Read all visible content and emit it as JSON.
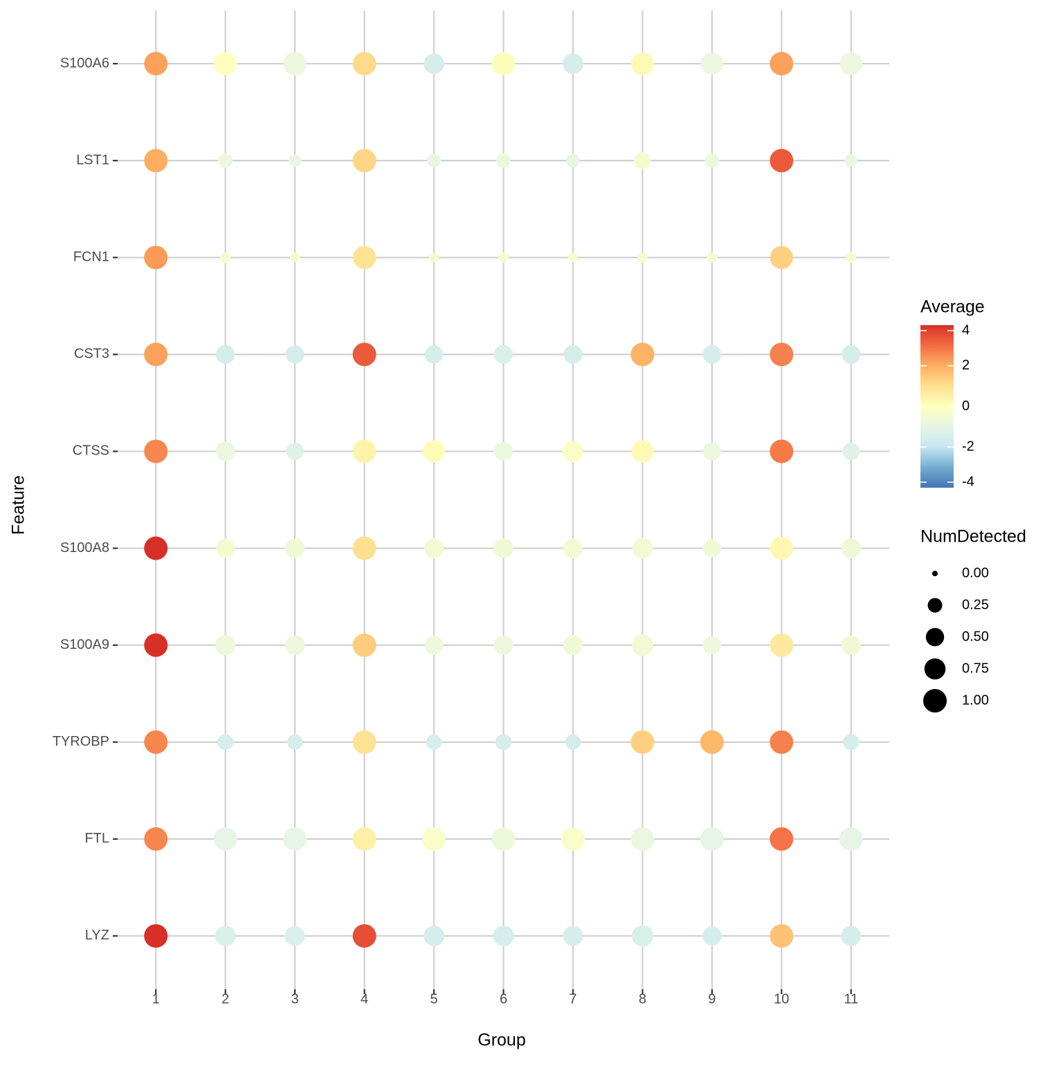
{
  "chart_data": {
    "type": "dotplot",
    "x_label": "Group",
    "y_label": "Feature",
    "categories": [
      "1",
      "2",
      "3",
      "4",
      "5",
      "6",
      "7",
      "8",
      "9",
      "10",
      "11"
    ],
    "series": [
      {
        "name": "S100A6",
        "values": [
          2.2,
          0.0,
          -0.8,
          1.1,
          -1.5,
          0.1,
          -1.5,
          0.2,
          -0.8,
          2.2,
          -0.8
        ],
        "sizes": [
          1.0,
          0.95,
          0.95,
          1.0,
          0.7,
          0.95,
          0.7,
          0.95,
          0.85,
          1.0,
          0.9
        ]
      },
      {
        "name": "LST1",
        "values": [
          2.0,
          -0.8,
          -0.9,
          1.2,
          -0.9,
          -0.8,
          -0.9,
          -0.4,
          -0.8,
          3.3,
          -0.9
        ],
        "sizes": [
          1.0,
          0.25,
          0.15,
          1.0,
          0.2,
          0.25,
          0.2,
          0.4,
          0.25,
          1.0,
          0.15
        ]
      },
      {
        "name": "FCN1",
        "values": [
          2.3,
          -0.4,
          -0.4,
          0.9,
          -0.4,
          -0.4,
          -0.4,
          -0.4,
          -0.4,
          1.3,
          -0.4
        ],
        "sizes": [
          1.0,
          0.08,
          0.06,
          0.95,
          0.05,
          0.07,
          0.05,
          0.07,
          0.07,
          0.95,
          0.08
        ]
      },
      {
        "name": "CST3",
        "values": [
          2.2,
          -1.5,
          -1.5,
          3.3,
          -1.5,
          -1.4,
          -1.5,
          1.9,
          -1.5,
          2.7,
          -1.5
        ],
        "sizes": [
          1.0,
          0.55,
          0.5,
          1.0,
          0.5,
          0.55,
          0.55,
          1.0,
          0.55,
          1.0,
          0.55
        ]
      },
      {
        "name": "CTSS",
        "values": [
          2.6,
          -0.8,
          -1.2,
          0.4,
          0.1,
          -0.8,
          -0.2,
          0.2,
          -0.8,
          2.8,
          -1.2
        ],
        "sizes": [
          1.0,
          0.6,
          0.45,
          1.0,
          0.85,
          0.55,
          0.75,
          0.85,
          0.5,
          1.0,
          0.45
        ]
      },
      {
        "name": "S100A8",
        "values": [
          4.0,
          -0.4,
          -0.6,
          1.0,
          -0.5,
          -0.6,
          -0.5,
          -0.5,
          -0.6,
          0.3,
          -0.6
        ],
        "sizes": [
          1.0,
          0.55,
          0.6,
          1.0,
          0.6,
          0.6,
          0.6,
          0.7,
          0.5,
          0.95,
          0.6
        ]
      },
      {
        "name": "S100A9",
        "values": [
          4.0,
          -0.7,
          -0.7,
          1.4,
          -0.7,
          -0.7,
          -0.6,
          -0.5,
          -0.7,
          0.7,
          -0.6
        ],
        "sizes": [
          1.0,
          0.65,
          0.6,
          1.0,
          0.55,
          0.6,
          0.65,
          0.8,
          0.5,
          1.0,
          0.6
        ]
      },
      {
        "name": "TYROBP",
        "values": [
          2.6,
          -1.5,
          -1.5,
          0.9,
          -1.5,
          -1.5,
          -1.6,
          1.3,
          1.8,
          2.7,
          -1.5
        ],
        "sizes": [
          1.0,
          0.35,
          0.3,
          1.0,
          0.3,
          0.35,
          0.3,
          1.0,
          1.0,
          1.0,
          0.35
        ]
      },
      {
        "name": "FTL",
        "values": [
          2.6,
          -1.0,
          -1.0,
          0.5,
          -0.2,
          -0.7,
          -0.2,
          -0.8,
          -1.0,
          2.9,
          -1.0
        ],
        "sizes": [
          1.0,
          1.0,
          1.0,
          1.0,
          1.0,
          1.0,
          1.0,
          1.0,
          1.0,
          1.0,
          1.0
        ]
      },
      {
        "name": "LYZ",
        "values": [
          4.0,
          -1.4,
          -1.4,
          3.5,
          -1.5,
          -1.5,
          -1.5,
          -1.4,
          -1.5,
          1.6,
          -1.5
        ],
        "sizes": [
          1.0,
          0.7,
          0.65,
          1.0,
          0.7,
          0.7,
          0.65,
          0.8,
          0.55,
          1.0,
          0.65
        ]
      }
    ],
    "color_legend_title": "Average",
    "color_lim": [
      -4,
      4
    ],
    "color_ticks": [
      -4,
      -2,
      0,
      2,
      4
    ],
    "color_scale": [
      "#4575b4",
      "#74add1",
      "#c6e6f0",
      "#e6f5e6",
      "#ffffbf",
      "#fee090",
      "#fdae61",
      "#f46d43",
      "#d73027"
    ],
    "size_legend_title": "NumDetected",
    "size_lim": [
      0,
      1
    ],
    "size_ticks": [
      {
        "value": 0,
        "label": "0.00"
      },
      {
        "value": 0.25,
        "label": "0.25"
      },
      {
        "value": 0.5,
        "label": "0.50"
      },
      {
        "value": 0.75,
        "label": "0.75"
      },
      {
        "value": 1,
        "label": "1.00"
      }
    ],
    "grid": true
  }
}
